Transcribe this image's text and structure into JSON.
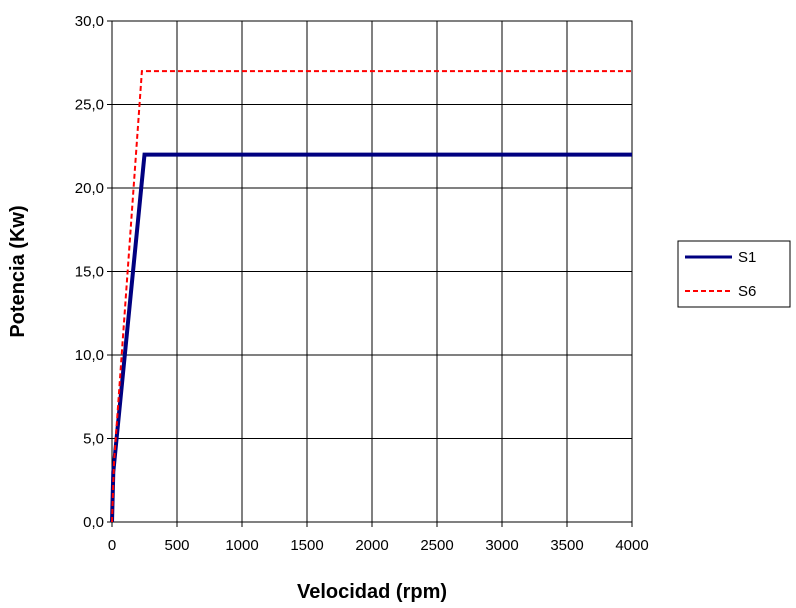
{
  "chart_data": {
    "type": "line",
    "title": "",
    "xlabel": "Velocidad (rpm)",
    "ylabel": "Potencia (Kw)",
    "xlim": [
      0,
      4000
    ],
    "ylim": [
      0,
      30
    ],
    "x_ticks": [
      0,
      500,
      1000,
      1500,
      2000,
      2500,
      3000,
      3500,
      4000
    ],
    "x_tick_labels": [
      "0",
      "500",
      "1000",
      "1500",
      "2000",
      "2500",
      "3000",
      "3500",
      "4000"
    ],
    "y_ticks": [
      0,
      5,
      10,
      15,
      20,
      25,
      30
    ],
    "y_tick_labels": [
      "0,0",
      "5,0",
      "10,0",
      "15,0",
      "20,0",
      "25,0",
      "30,0"
    ],
    "grid": true,
    "legend_position": "right",
    "series": [
      {
        "name": "S1",
        "color": "#000080",
        "style": "solid",
        "x": [
          0,
          10,
          250,
          4000
        ],
        "y": [
          0,
          3,
          22,
          22
        ]
      },
      {
        "name": "S6",
        "color": "#ff0000",
        "style": "dashed",
        "x": [
          0,
          15,
          230,
          4000
        ],
        "y": [
          0,
          3.5,
          27,
          27
        ]
      }
    ]
  }
}
